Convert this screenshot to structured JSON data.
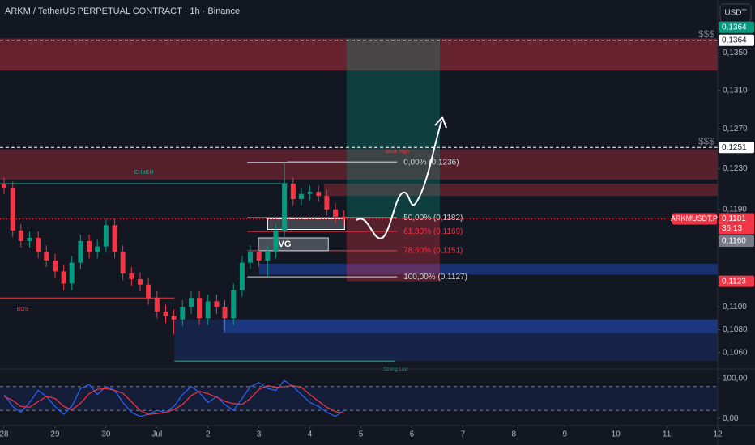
{
  "title": "ARKM / TetherUS PERPETUAL CONTRACT · 1h · Binance",
  "currency": "USDT",
  "chart_data": {
    "type": "candlestick",
    "log_scale": true,
    "grid": false,
    "xlim": [
      -0.08,
      14.0
    ],
    "xticks": [
      {
        "value": 0,
        "label": "28"
      },
      {
        "value": 1,
        "label": "29"
      },
      {
        "value": 2,
        "label": "30"
      },
      {
        "value": 3,
        "label": "Jul"
      },
      {
        "value": 4,
        "label": "2"
      },
      {
        "value": 5,
        "label": "3"
      },
      {
        "value": 6,
        "label": "4"
      },
      {
        "value": 7,
        "label": "5"
      },
      {
        "value": 8,
        "label": "6"
      },
      {
        "value": 9,
        "label": "7"
      },
      {
        "value": 10,
        "label": "8"
      },
      {
        "value": 11,
        "label": "9"
      },
      {
        "value": 12,
        "label": "10"
      },
      {
        "value": 13,
        "label": "11"
      },
      {
        "value": 14,
        "label": "12"
      }
    ],
    "ylim": [
      0.1047,
      0.1409
    ],
    "yticks": [
      {
        "value": 0.135,
        "label": "0,1350"
      },
      {
        "value": 0.131,
        "label": "0,1310"
      },
      {
        "value": 0.127,
        "label": "0,1270"
      },
      {
        "value": 0.123,
        "label": "0,1230"
      },
      {
        "value": 0.119,
        "label": "0,1190"
      },
      {
        "value": 0.11,
        "label": "0,1100"
      },
      {
        "value": 0.108,
        "label": "0,1080"
      },
      {
        "value": 0.106,
        "label": "0,1060"
      }
    ],
    "x": [
      0,
      0.17,
      0.33,
      0.5,
      0.67,
      0.83,
      1,
      1.17,
      1.33,
      1.5,
      1.67,
      1.83,
      2,
      2.17,
      2.33,
      2.5,
      2.67,
      2.83,
      3,
      3.17,
      3.33,
      3.5,
      3.67,
      3.83,
      4,
      4.17,
      4.33,
      4.5,
      4.67,
      4.83,
      5,
      5.17,
      5.33,
      5.5,
      5.67,
      5.83,
      6,
      6.17,
      6.33,
      6.5,
      6.67
    ],
    "open": [
      0.1215,
      0.1211,
      0.117,
      0.116,
      0.1163,
      0.115,
      0.1142,
      0.1132,
      0.1121,
      0.114,
      0.116,
      0.115,
      0.1155,
      0.1175,
      0.115,
      0.113,
      0.1125,
      0.112,
      0.1108,
      0.1096,
      0.1092,
      0.1089,
      0.11,
      0.1108,
      0.109,
      0.1105,
      0.11,
      0.109,
      0.1115,
      0.114,
      0.115,
      0.1142,
      0.115,
      0.117,
      0.1215,
      0.12,
      0.1205,
      0.1207,
      0.1203,
      0.119,
      0.1183
    ],
    "high": [
      0.1221,
      0.1217,
      0.1176,
      0.1169,
      0.1169,
      0.1156,
      0.1148,
      0.1138,
      0.1146,
      0.1166,
      0.1166,
      0.1161,
      0.1181,
      0.1181,
      0.1156,
      0.1136,
      0.1131,
      0.1126,
      0.1114,
      0.1102,
      0.1098,
      0.1106,
      0.1114,
      0.1114,
      0.1111,
      0.1111,
      0.1106,
      0.1121,
      0.1146,
      0.1156,
      0.1156,
      0.1156,
      0.1176,
      0.1236,
      0.1221,
      0.1211,
      0.1213,
      0.1213,
      0.1209,
      0.1196,
      0.1189
    ],
    "low": [
      0.1205,
      0.1164,
      0.1154,
      0.1154,
      0.1144,
      0.1136,
      0.1126,
      0.1115,
      0.1115,
      0.1134,
      0.1144,
      0.1144,
      0.1149,
      0.1144,
      0.1124,
      0.1119,
      0.1114,
      0.1102,
      0.109,
      0.1086,
      0.1076,
      0.1083,
      0.1094,
      0.1084,
      0.1084,
      0.1094,
      0.1078,
      0.1084,
      0.1109,
      0.1134,
      0.1136,
      0.1127,
      0.1144,
      0.1164,
      0.1194,
      0.1194,
      0.1199,
      0.1197,
      0.1184,
      0.1177,
      0.1175
    ],
    "close": [
      0.1211,
      0.117,
      0.116,
      0.1163,
      0.115,
      0.1142,
      0.1132,
      0.1121,
      0.114,
      0.116,
      0.115,
      0.1155,
      0.1175,
      0.115,
      0.113,
      0.1125,
      0.112,
      0.1108,
      0.1096,
      0.1092,
      0.1089,
      0.11,
      0.1108,
      0.109,
      0.1105,
      0.11,
      0.109,
      0.1115,
      0.114,
      0.115,
      0.1142,
      0.115,
      0.117,
      0.1215,
      0.12,
      0.1205,
      0.1207,
      0.1203,
      0.119,
      0.1183,
      0.1181
    ],
    "up_color": "#089981",
    "down_color": "#f23645",
    "last_price_line": {
      "value": 0.1181,
      "color": "#f23645"
    },
    "symbol_label": "ARKMUSDT.P",
    "countdown": "36:13",
    "price_labels": [
      {
        "value": 0.1364,
        "label": "0,1364",
        "color": "#089981"
      },
      {
        "value": 0.1364,
        "label": "0,1364",
        "color": "#ffffff"
      },
      {
        "value": 0.1251,
        "label": "0,1251",
        "color": "#ffffff"
      },
      {
        "value": 0.1181,
        "label": "0,1181",
        "color": "#f23645"
      },
      {
        "value": 0.116,
        "label": "0,1160",
        "color": "#787b86"
      },
      {
        "value": 0.1123,
        "label": "0,1123",
        "color": "#f23645"
      }
    ],
    "zones": [
      {
        "range": [
          0.1331,
          0.1366
        ],
        "x": [
          -0.08,
          14
        ],
        "color": "rgba(242,54,69,0.38)"
      },
      {
        "range": [
          0.1219,
          0.1249
        ],
        "x": [
          -0.08,
          14
        ],
        "color": "rgba(242,54,69,0.3)"
      },
      {
        "range": [
          0.1203,
          0.1215
        ],
        "x": [
          6.28,
          14
        ],
        "color": "rgba(242,54,69,0.3)"
      },
      {
        "range": [
          0.1053,
          0.1089
        ],
        "x": [
          3.34,
          14
        ],
        "color": "rgba(41,98,255,0.18)"
      },
      {
        "range": [
          0.1077,
          0.1089
        ],
        "x": [
          4.29,
          14
        ],
        "color": "rgba(41,98,255,0.3)"
      },
      {
        "range": [
          0.1129,
          0.1139
        ],
        "x": [
          5.0,
          14
        ],
        "color": "rgba(41,98,255,0.35)"
      }
    ],
    "position": {
      "x": [
        6.72,
        8.55
      ],
      "entry": 0.1181,
      "target": 0.1366,
      "stop": 0.1123,
      "target_color": "rgba(8,153,129,0.3)",
      "stop_color": "rgba(242,54,69,0.3)"
    },
    "liquidity": [
      {
        "value": 0.1364,
        "label": "$$$"
      },
      {
        "value": 0.1251,
        "label": "$$$"
      }
    ],
    "fib": {
      "x": [
        4.77,
        7.71
      ],
      "levels": [
        {
          "value": 0.1236,
          "label": "0,00% (0,1236)",
          "color": "#d1d4dc"
        },
        {
          "value": 0.1182,
          "label": "50,00% (0,1182)",
          "color": "#d1d4dc"
        },
        {
          "value": 0.1169,
          "label": "61,80% (0,1169)",
          "color": "#f23645"
        },
        {
          "value": 0.1151,
          "label": "78,60% (0,1151)",
          "color": "#f23645"
        },
        {
          "value": 0.1127,
          "label": "100,00% (0,1127)",
          "color": "#d1d4dc"
        }
      ]
    },
    "structure": [
      {
        "label": "CHoCH",
        "value": 0.1215,
        "x": [
          -0.08,
          5.56
        ],
        "color": "#22ab94"
      },
      {
        "label": "BOS",
        "value": 0.1108,
        "x": [
          -0.08,
          3.34
        ],
        "color": "#f23645"
      },
      {
        "label": "Strong Low",
        "value": 0.1053,
        "x": [
          3.34,
          7.68
        ],
        "color": "#22ab94"
      },
      {
        "label": "Weak High",
        "value": 0.1237,
        "x": [
          5.56,
          7.71
        ],
        "color": "#f23645"
      }
    ],
    "fvg": {
      "label": "FVG",
      "range": [
        0.1151,
        0.1163
      ],
      "x": [
        4.99,
        6.36
      ]
    },
    "order_block": {
      "range": [
        0.1171,
        0.1181
      ],
      "x": [
        5.17,
        6.68
      ]
    },
    "indicator": {
      "type": "line",
      "ylim": [
        -16,
        120
      ],
      "yticks": [
        {
          "value": 100,
          "label": "100,00"
        },
        {
          "value": 0,
          "label": "0,00"
        }
      ],
      "bands": [
        20,
        80
      ],
      "series": [
        {
          "color": "#2962ff",
          "values": [
            60,
            30,
            15,
            40,
            70,
            55,
            30,
            10,
            30,
            75,
            85,
            60,
            80,
            70,
            40,
            15,
            5,
            10,
            20,
            15,
            30,
            60,
            80,
            65,
            40,
            55,
            35,
            20,
            50,
            80,
            90,
            75,
            70,
            95,
            80,
            60,
            40,
            30,
            15,
            5,
            20
          ]
        },
        {
          "color": "#f23645",
          "values": [
            55,
            45,
            30,
            28,
            42,
            55,
            50,
            30,
            22,
            38,
            62,
            73,
            75,
            70,
            63,
            42,
            20,
            10,
            12,
            15,
            22,
            35,
            57,
            68,
            62,
            53,
            43,
            37,
            35,
            50,
            73,
            82,
            78,
            80,
            82,
            78,
            60,
            43,
            28,
            17,
            13
          ]
        }
      ]
    }
  }
}
